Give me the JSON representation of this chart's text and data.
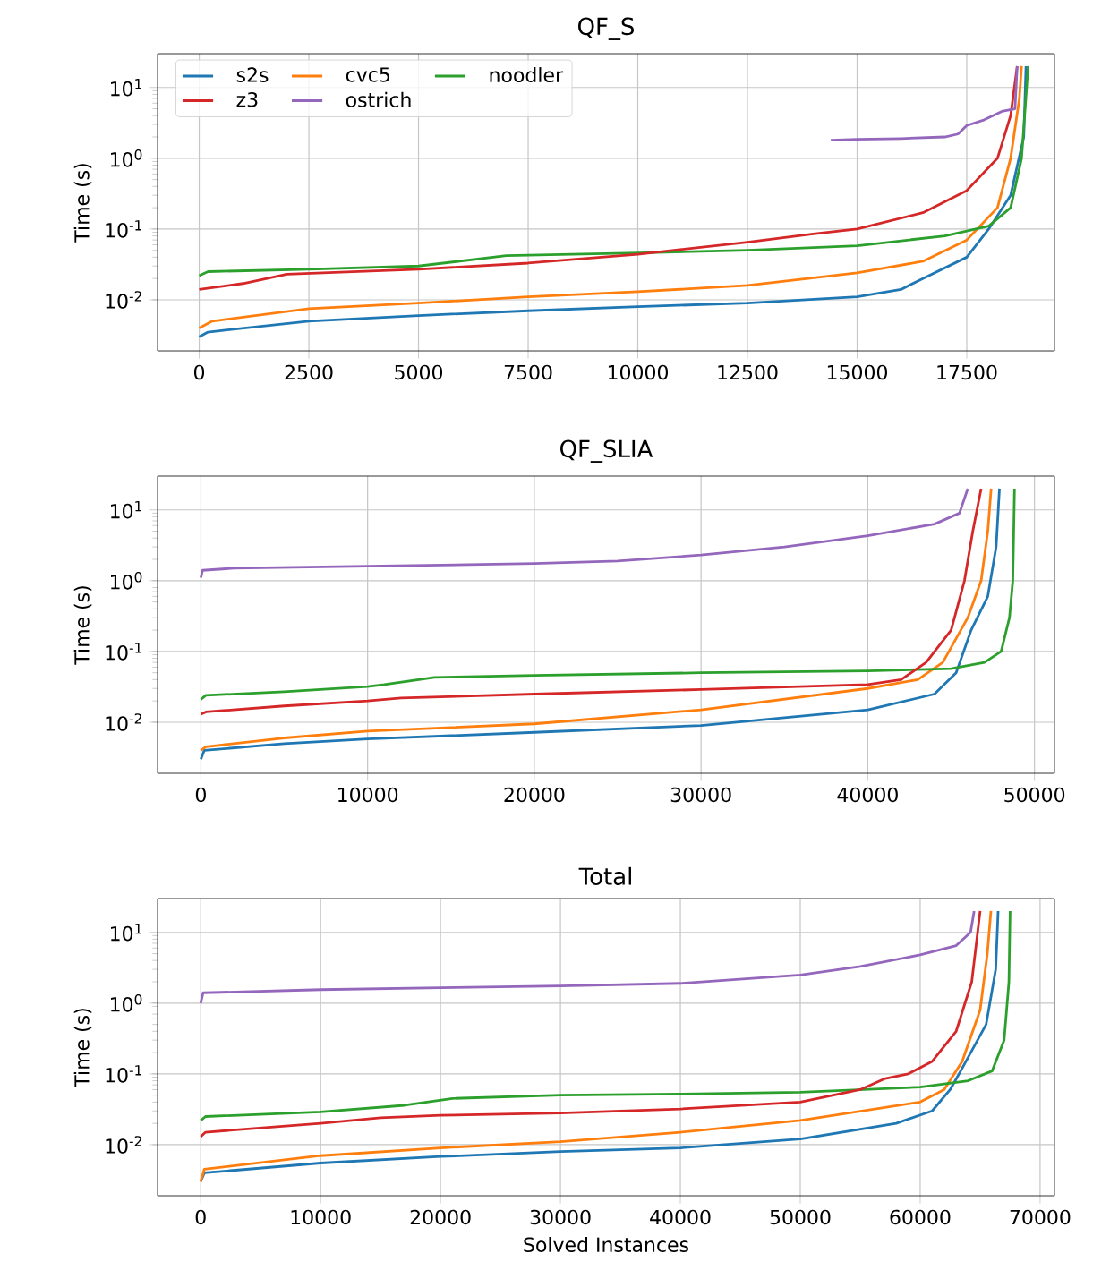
{
  "chart_data": [
    {
      "type": "line",
      "title": "QF_S",
      "ylabel": "Time (s)",
      "log": "y",
      "grid": true,
      "legend": "top left",
      "marker": "none",
      "line_style": "solid",
      "xlim": [
        -950,
        19500
      ],
      "xticks": [
        0,
        2500,
        5000,
        7500,
        10000,
        12500,
        15000,
        17500
      ],
      "ylim": [
        0.0019,
        30
      ],
      "yticks": [
        {
          "value": 0.01,
          "label": "10$^{-2}$"
        },
        {
          "value": 0.1,
          "label": "10$^{-1}$"
        },
        {
          "value": 1,
          "label": "10$^{0}$"
        },
        {
          "value": 10,
          "label": "10$^{1}$"
        }
      ],
      "series": [
        {
          "name": "s2s",
          "color": "#1f77b4",
          "x": [
            0,
            200,
            2500,
            5000,
            7500,
            10000,
            12500,
            15000,
            16000,
            16500,
            17500,
            18000,
            18500,
            18800,
            18850
          ],
          "values": [
            0.003,
            0.0035,
            0.005,
            0.006,
            0.007,
            0.008,
            0.009,
            0.011,
            0.014,
            0.02,
            0.04,
            0.1,
            0.3,
            2,
            20
          ]
        },
        {
          "name": "cvc5",
          "color": "#ff7f0e",
          "x": [
            0,
            300,
            2500,
            5000,
            7500,
            10000,
            12500,
            15000,
            16500,
            17500,
            18200,
            18500,
            18700,
            18750
          ],
          "values": [
            0.004,
            0.005,
            0.0075,
            0.009,
            0.011,
            0.013,
            0.016,
            0.024,
            0.035,
            0.07,
            0.2,
            1,
            7,
            20
          ]
        },
        {
          "name": "noodler",
          "color": "#2ca02c",
          "x": [
            0,
            200,
            2500,
            5000,
            7000,
            10000,
            12500,
            15000,
            17000,
            18000,
            18500,
            18750,
            18900
          ],
          "values": [
            0.022,
            0.025,
            0.027,
            0.03,
            0.042,
            0.046,
            0.05,
            0.058,
            0.08,
            0.11,
            0.2,
            1,
            20
          ]
        },
        {
          "name": "z3",
          "color": "#d62728",
          "x": [
            0,
            1000,
            2000,
            5000,
            7500,
            10000,
            12500,
            14000,
            15000,
            16500,
            17500,
            18200,
            18500,
            18650
          ],
          "values": [
            0.014,
            0.017,
            0.023,
            0.027,
            0.033,
            0.044,
            0.065,
            0.085,
            0.1,
            0.17,
            0.35,
            1,
            4,
            20
          ]
        },
        {
          "name": "ostrich",
          "color": "#9467bd",
          "x": [
            14400,
            15000,
            16000,
            17000,
            17300,
            17500,
            17900,
            18300,
            18600,
            18650
          ],
          "values": [
            1.8,
            1.85,
            1.9,
            2.0,
            2.2,
            2.9,
            3.5,
            4.6,
            5,
            20
          ]
        }
      ]
    },
    {
      "type": "line",
      "title": "QF_SLIA",
      "ylabel": "Time (s)",
      "log": "y",
      "grid": true,
      "marker": "none",
      "line_style": "solid",
      "xlim": [
        -2600,
        51200
      ],
      "xticks": [
        0,
        10000,
        20000,
        30000,
        40000,
        50000
      ],
      "ylim": [
        0.0019,
        30
      ],
      "yticks": [
        {
          "value": 0.01,
          "label": "10$^{-2}$"
        },
        {
          "value": 0.1,
          "label": "10$^{-1}$"
        },
        {
          "value": 1,
          "label": "10$^{0}$"
        },
        {
          "value": 10,
          "label": "10$^{1}$"
        }
      ],
      "series": [
        {
          "color": "#1f77b4",
          "x": [
            0,
            200,
            5000,
            10000,
            20000,
            30000,
            40000,
            44000,
            45300,
            46200,
            47200,
            47700,
            47900
          ],
          "values": [
            0.003,
            0.004,
            0.005,
            0.0058,
            0.0072,
            0.009,
            0.015,
            0.025,
            0.05,
            0.2,
            0.6,
            3,
            20
          ]
        },
        {
          "color": "#ff7f0e",
          "x": [
            0,
            300,
            5000,
            10000,
            20000,
            30000,
            40000,
            43000,
            44500,
            46000,
            46800,
            47200,
            47400
          ],
          "values": [
            0.004,
            0.0045,
            0.006,
            0.0075,
            0.0095,
            0.015,
            0.03,
            0.04,
            0.07,
            0.3,
            1,
            5,
            20
          ]
        },
        {
          "color": "#2ca02c",
          "x": [
            0,
            300,
            5000,
            10000,
            11000,
            14000,
            20000,
            30000,
            40000,
            45000,
            47000,
            48000,
            48500,
            48700,
            48800
          ],
          "values": [
            0.021,
            0.024,
            0.027,
            0.032,
            0.034,
            0.043,
            0.046,
            0.05,
            0.053,
            0.057,
            0.07,
            0.1,
            0.3,
            1,
            20
          ]
        },
        {
          "color": "#d62728",
          "x": [
            0,
            300,
            5000,
            10000,
            12000,
            20000,
            30000,
            40000,
            42000,
            43500,
            45000,
            45800,
            46300,
            46800
          ],
          "values": [
            0.013,
            0.014,
            0.017,
            0.02,
            0.022,
            0.025,
            0.029,
            0.034,
            0.04,
            0.07,
            0.2,
            1,
            5,
            20
          ]
        },
        {
          "color": "#9467bd",
          "x": [
            0,
            100,
            2000,
            10000,
            20000,
            25000,
            30000,
            35000,
            40000,
            44000,
            45500,
            46000
          ],
          "values": [
            1.1,
            1.4,
            1.5,
            1.6,
            1.75,
            1.9,
            2.3,
            3.0,
            4.3,
            6.3,
            9,
            20
          ]
        }
      ]
    },
    {
      "type": "line",
      "title": "Total",
      "xlabel": "Solved Instances",
      "ylabel": "Time (s)",
      "log": "y",
      "grid": true,
      "marker": "none",
      "line_style": "solid",
      "xlim": [
        -3600,
        71200
      ],
      "xticks": [
        0,
        10000,
        20000,
        30000,
        40000,
        50000,
        60000,
        70000
      ],
      "ylim": [
        0.0019,
        30
      ],
      "yticks": [
        {
          "value": 0.01,
          "label": "10$^{-2}$"
        },
        {
          "value": 0.1,
          "label": "10$^{-1}$"
        },
        {
          "value": 1,
          "label": "10$^{0}$"
        },
        {
          "value": 10,
          "label": "10$^{1}$"
        }
      ],
      "series": [
        {
          "color": "#1f77b4",
          "x": [
            0,
            300,
            10000,
            20000,
            30000,
            40000,
            50000,
            58000,
            61000,
            62500,
            63500,
            65500,
            66300,
            66500
          ],
          "values": [
            0.003,
            0.004,
            0.0055,
            0.0068,
            0.008,
            0.009,
            0.012,
            0.02,
            0.03,
            0.06,
            0.12,
            0.5,
            3,
            20
          ]
        },
        {
          "color": "#ff7f0e",
          "x": [
            0,
            300,
            10000,
            20000,
            30000,
            40000,
            50000,
            60000,
            62000,
            63500,
            65000,
            65600,
            65900
          ],
          "values": [
            0.003,
            0.0045,
            0.007,
            0.009,
            0.011,
            0.015,
            0.022,
            0.04,
            0.06,
            0.15,
            0.8,
            5,
            20
          ]
        },
        {
          "color": "#2ca02c",
          "x": [
            0,
            400,
            10000,
            17000,
            21000,
            30000,
            40000,
            50000,
            60000,
            64000,
            66000,
            67000,
            67400,
            67500
          ],
          "values": [
            0.022,
            0.025,
            0.029,
            0.036,
            0.045,
            0.05,
            0.052,
            0.055,
            0.065,
            0.08,
            0.11,
            0.3,
            2,
            20
          ]
        },
        {
          "color": "#d62728",
          "x": [
            0,
            400,
            10000,
            15000,
            20000,
            30000,
            40000,
            50000,
            55000,
            57000,
            59000,
            61000,
            63000,
            64300,
            65000
          ],
          "values": [
            0.013,
            0.015,
            0.02,
            0.024,
            0.026,
            0.028,
            0.032,
            0.04,
            0.06,
            0.085,
            0.1,
            0.15,
            0.4,
            2,
            20
          ]
        },
        {
          "color": "#9467bd",
          "x": [
            0,
            200,
            10000,
            20000,
            30000,
            40000,
            50000,
            55000,
            60000,
            63000,
            64200,
            64500
          ],
          "values": [
            1.0,
            1.4,
            1.55,
            1.65,
            1.75,
            1.9,
            2.5,
            3.3,
            4.8,
            6.5,
            10,
            20
          ]
        }
      ]
    }
  ]
}
